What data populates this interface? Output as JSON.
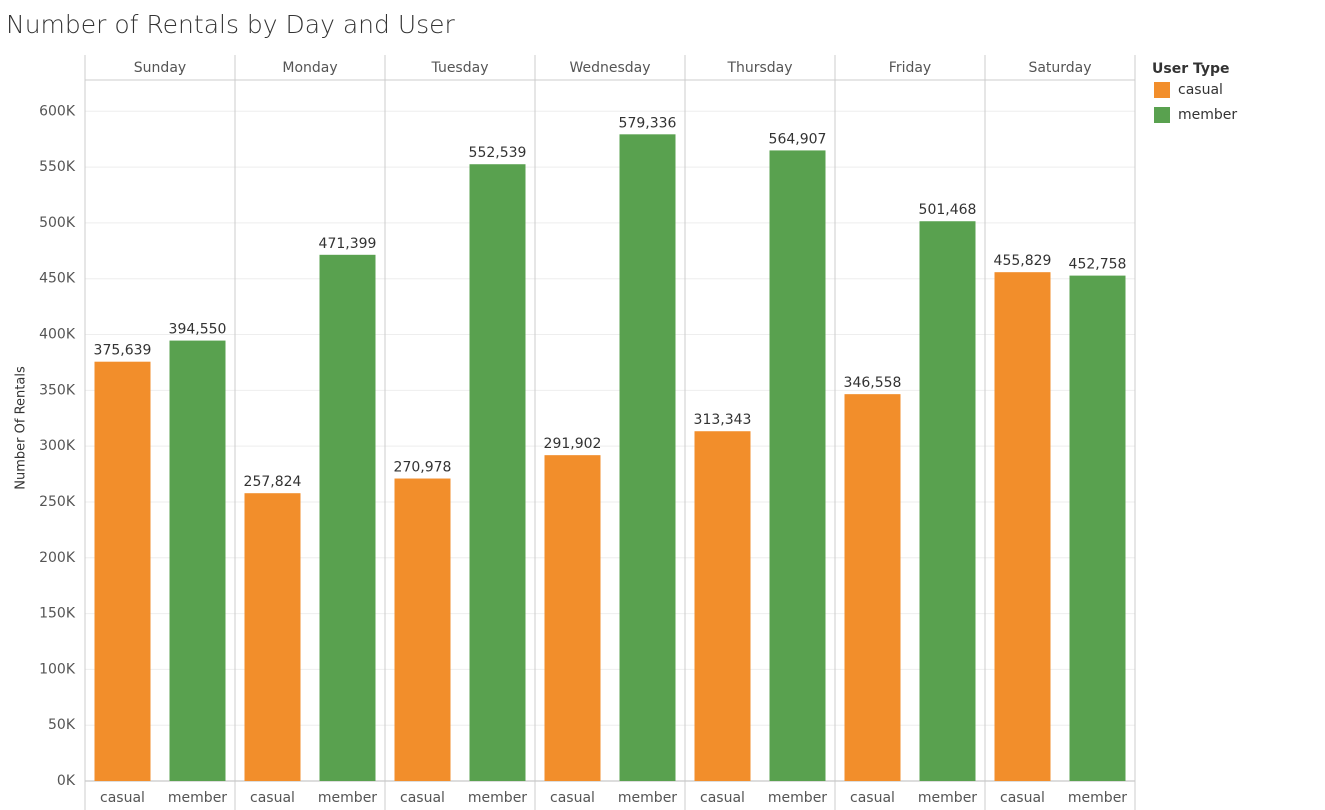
{
  "chart_data": {
    "type": "bar",
    "title": "Number of Rentals by Day and User",
    "y_label": "Number Of Rentals",
    "legend_title": "User Type",
    "legend": "right",
    "categories": [
      "Sunday",
      "Monday",
      "Tuesday",
      "Wednesday",
      "Thursday",
      "Friday",
      "Saturday"
    ],
    "series": [
      {
        "name": "casual",
        "color": "#f28e2b",
        "values": [
          375639,
          257824,
          270978,
          291902,
          313343,
          346558,
          455829
        ],
        "value_labels": [
          "375,639",
          "257,824",
          "270,978",
          "291,902",
          "313,343",
          "346,558",
          "455,829"
        ]
      },
      {
        "name": "member",
        "color": "#59a14f",
        "values": [
          394550,
          471399,
          552539,
          579336,
          564907,
          501468,
          452758
        ],
        "value_labels": [
          "394,550",
          "471,399",
          "552,539",
          "579,336",
          "564,907",
          "501,468",
          "452,758"
        ]
      }
    ],
    "ylim": [
      0,
      628000
    ],
    "yticks": [
      {
        "value": 0,
        "label": "0K"
      },
      {
        "value": 50000,
        "label": "50K"
      },
      {
        "value": 100000,
        "label": "100K"
      },
      {
        "value": 150000,
        "label": "150K"
      },
      {
        "value": 200000,
        "label": "200K"
      },
      {
        "value": 250000,
        "label": "250K"
      },
      {
        "value": 300000,
        "label": "300K"
      },
      {
        "value": 350000,
        "label": "350K"
      },
      {
        "value": 400000,
        "label": "400K"
      },
      {
        "value": 450000,
        "label": "450K"
      },
      {
        "value": 500000,
        "label": "500K"
      },
      {
        "value": 550000,
        "label": "550K"
      },
      {
        "value": 600000,
        "label": "600K"
      }
    ],
    "grid": true
  }
}
